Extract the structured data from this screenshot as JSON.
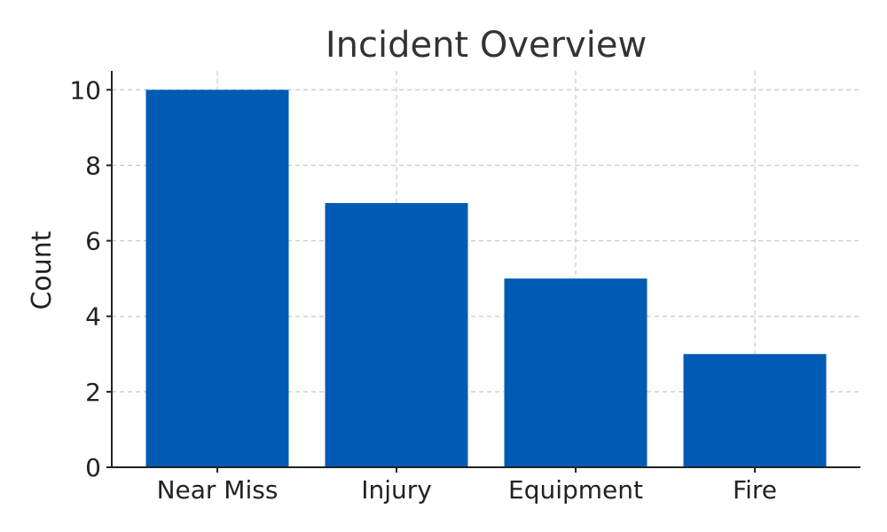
{
  "chart_data": {
    "type": "bar",
    "title": "Incident Overview",
    "xlabel": "",
    "ylabel": "Count",
    "categories": [
      "Near Miss",
      "Injury",
      "Equipment",
      "Fire"
    ],
    "values": [
      10,
      7,
      5,
      3
    ],
    "ylim": [
      0,
      10.5
    ],
    "yticks": [
      0,
      2,
      4,
      6,
      8,
      10
    ],
    "grid": true,
    "bar_color": "#005bb5"
  }
}
